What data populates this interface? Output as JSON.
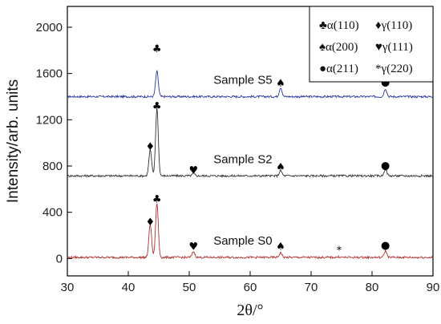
{
  "chart_data": {
    "type": "line",
    "xlabel": "2θ/°",
    "ylabel": "Intensity/arb. units",
    "xlim": [
      30,
      90
    ],
    "ylim": [
      -150,
      2180
    ],
    "x_ticks": [
      "30",
      "40",
      "50",
      "60",
      "70",
      "80",
      "90"
    ],
    "y_ticks": [
      "0",
      "400",
      "800",
      "1200",
      "1600",
      "2000"
    ],
    "grid": false,
    "legend": {
      "placement": "top-right",
      "rows": [
        [
          "♣α(110)",
          "♦γ(110)"
        ],
        [
          "♠α(200)",
          "♥γ(111)"
        ],
        [
          "●α(211)",
          "*γ(220)"
        ]
      ]
    },
    "series": [
      {
        "name": "Sample S5",
        "color": "#2a3a9a",
        "baseline": 1400,
        "peaks": [
          [
            44.7,
            1620
          ],
          [
            65.0,
            1480
          ],
          [
            82.2,
            1470
          ]
        ],
        "markers": [
          [
            "club-icon",
            44.7,
            1820
          ],
          [
            "spade-icon",
            65.0,
            1520
          ],
          [
            "circle-icon",
            82.2,
            1530
          ]
        ]
      },
      {
        "name": "Sample S2",
        "color": "#333333",
        "baseline": 715,
        "peaks": [
          [
            43.6,
            940
          ],
          [
            44.7,
            1300
          ],
          [
            50.7,
            735
          ],
          [
            65.0,
            760
          ],
          [
            82.2,
            775
          ]
        ],
        "markers": [
          [
            "diamond-icon",
            43.6,
            975
          ],
          [
            "club-icon",
            44.7,
            1325
          ],
          [
            "heart-icon",
            50.7,
            770
          ],
          [
            "spade-icon",
            65.0,
            795
          ],
          [
            "circle-icon",
            82.2,
            810
          ]
        ]
      },
      {
        "name": "Sample S0",
        "color": "#b03030",
        "baseline": 10,
        "peaks": [
          [
            43.6,
            300
          ],
          [
            44.7,
            480
          ],
          [
            50.7,
            60
          ],
          [
            65.0,
            50
          ],
          [
            74.6,
            15
          ],
          [
            82.2,
            65
          ]
        ],
        "markers": [
          [
            "diamond-icon",
            43.6,
            320
          ],
          [
            "club-icon",
            44.7,
            520
          ],
          [
            "heart-icon",
            50.7,
            110
          ],
          [
            "spade-icon",
            65.0,
            110
          ],
          [
            "asterisk-icon",
            74.6,
            75
          ],
          [
            "circle-icon",
            82.2,
            120
          ]
        ]
      }
    ]
  }
}
